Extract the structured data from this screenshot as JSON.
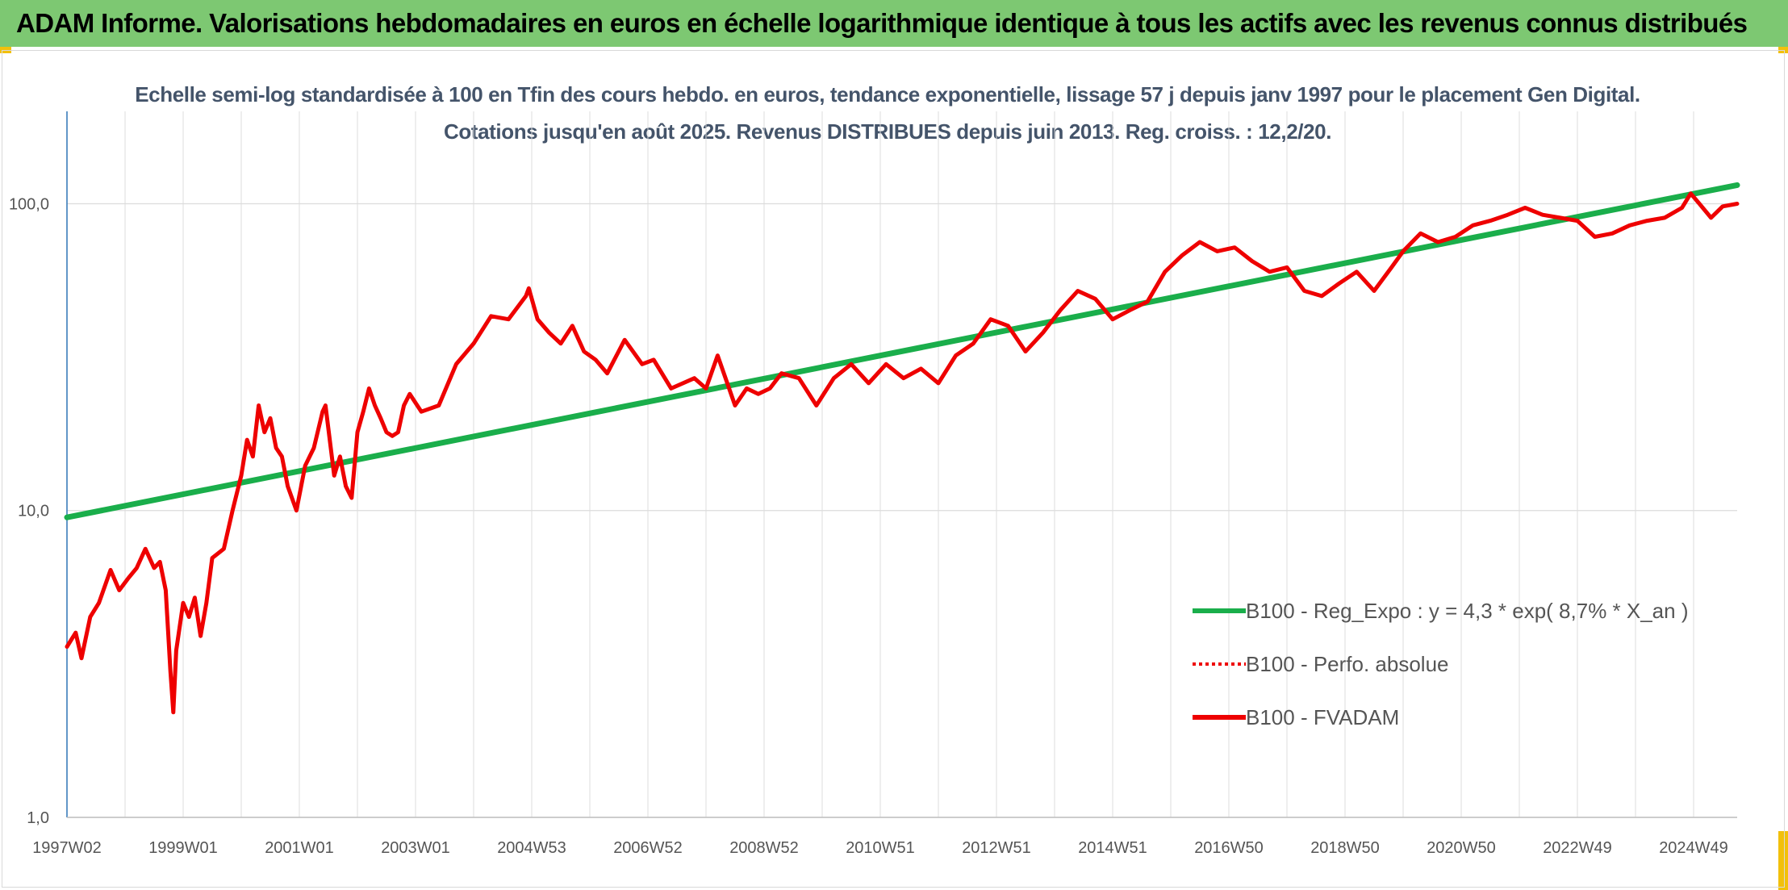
{
  "header": {
    "title": "ADAM Informe. Valorisations hebdomadaires en euros en échelle logarithmique identique à tous les actifs avec les revenus connus distribués"
  },
  "colors": {
    "header_bg": "#7dc872",
    "corner": "#f2c00c",
    "trend": "#1aae4b",
    "fvadam": "#ee0000",
    "grid": "#dcdcdc",
    "axis": "#2f75b5"
  },
  "chart_data": {
    "type": "line",
    "title": "Echelle semi-log standardisée à 100 en Tfin des cours hebdo. en euros, tendance exponentielle, lissage 57 j depuis janv 1997 pour le placement Gen Digital. Cotations jusqu'en août 2025. Revenus DISTRIBUES depuis juin 2013. Reg. croiss. : 12,2/20.",
    "y_scale": "log",
    "ylim": [
      1,
      200
    ],
    "y_ticks": [
      "1,0",
      "10,0",
      "100,0"
    ],
    "y_tick_values": [
      1,
      10,
      100
    ],
    "xlim": [
      1997.0,
      2025.75
    ],
    "x_tick_labels": [
      "1997W02",
      "1999W01",
      "2001W01",
      "2003W01",
      "2004W53",
      "2006W52",
      "2008W52",
      "2010W51",
      "2012W51",
      "2014W51",
      "2016W50",
      "2018W50",
      "2020W50",
      "2022W49",
      "2024W49"
    ],
    "x_tick_values": [
      1997.0,
      1999.0,
      2001.0,
      2003.0,
      2005.0,
      2007.0,
      2009.0,
      2011.0,
      2013.0,
      2015.0,
      2017.0,
      2019.0,
      2021.0,
      2023.0,
      2025.0
    ],
    "legend_position": "bottom-right",
    "grid": true,
    "series": [
      {
        "name": "B100 - Reg_Expo : y = 4,3 * exp( 8,7% *  X_an )",
        "style": "solid-green",
        "x": [
          1997.0,
          2025.75
        ],
        "y": [
          9.5,
          115
        ]
      },
      {
        "name": "B100 - Perfo. absolue",
        "style": "dotted-red",
        "x": [],
        "y": []
      },
      {
        "name": "B100 - FVADAM",
        "style": "solid-red",
        "x": [
          1997.0,
          1997.15,
          1997.25,
          1997.4,
          1997.55,
          1997.75,
          1997.9,
          1998.05,
          1998.2,
          1998.35,
          1998.5,
          1998.6,
          1998.7,
          1998.78,
          1998.83,
          1998.88,
          1999.0,
          1999.1,
          1999.2,
          1999.3,
          1999.4,
          1999.5,
          1999.7,
          1999.85,
          2000.0,
          2000.1,
          2000.2,
          2000.3,
          2000.4,
          2000.5,
          2000.6,
          2000.7,
          2000.8,
          2000.95,
          2001.1,
          2001.25,
          2001.4,
          2001.45,
          2001.6,
          2001.7,
          2001.8,
          2001.9,
          2002.0,
          2002.1,
          2002.2,
          2002.3,
          2002.4,
          2002.5,
          2002.6,
          2002.7,
          2002.8,
          2002.9,
          2003.1,
          2003.4,
          2003.7,
          2004.0,
          2004.3,
          2004.6,
          2004.9,
          2004.95,
          2005.1,
          2005.3,
          2005.5,
          2005.7,
          2005.9,
          2006.1,
          2006.3,
          2006.6,
          2006.9,
          2007.1,
          2007.4,
          2007.8,
          2008.0,
          2008.2,
          2008.5,
          2008.7,
          2008.9,
          2009.1,
          2009.3,
          2009.6,
          2009.9,
          2010.2,
          2010.5,
          2010.8,
          2011.1,
          2011.4,
          2011.7,
          2012.0,
          2012.3,
          2012.6,
          2012.9,
          2013.2,
          2013.5,
          2013.8,
          2014.1,
          2014.4,
          2014.7,
          2015.0,
          2015.3,
          2015.6,
          2015.9,
          2016.2,
          2016.5,
          2016.8,
          2017.1,
          2017.4,
          2017.7,
          2018.0,
          2018.3,
          2018.6,
          2018.9,
          2019.2,
          2019.5,
          2019.8,
          2020.0,
          2020.3,
          2020.6,
          2020.9,
          2021.2,
          2021.5,
          2021.8,
          2022.1,
          2022.4,
          2022.7,
          2023.0,
          2023.3,
          2023.6,
          2023.9,
          2024.2,
          2024.5,
          2024.8,
          2024.95,
          2025.1,
          2025.3,
          2025.5,
          2025.75
        ],
        "y": [
          3.6,
          4.0,
          3.3,
          4.5,
          5.0,
          6.4,
          5.5,
          6.0,
          6.5,
          7.5,
          6.5,
          6.8,
          5.5,
          3.0,
          2.2,
          3.5,
          5.0,
          4.5,
          5.2,
          3.9,
          5.0,
          7.0,
          7.5,
          10.0,
          13.0,
          17.0,
          15.0,
          22.0,
          18.0,
          20.0,
          16.0,
          15.0,
          12.0,
          10.0,
          14.0,
          16.0,
          21.0,
          22.0,
          13.0,
          15.0,
          12.0,
          11.0,
          18.0,
          21.0,
          25.0,
          22.0,
          20.0,
          18.0,
          17.5,
          18.0,
          22.0,
          24.0,
          21.0,
          22.0,
          30.0,
          35.0,
          43.0,
          42.0,
          50.0,
          53.0,
          42.0,
          38.0,
          35.0,
          40.0,
          33.0,
          31.0,
          28.0,
          36.0,
          30.0,
          31.0,
          25.0,
          27.0,
          25.0,
          32.0,
          22.0,
          25.0,
          24.0,
          25.0,
          28.0,
          27.0,
          22.0,
          27.0,
          30.0,
          26.0,
          30.0,
          27.0,
          29.0,
          26.0,
          32.0,
          35.0,
          42.0,
          40.0,
          33.0,
          38.0,
          45.0,
          52.0,
          49.0,
          42.0,
          45.0,
          48.0,
          60.0,
          68.0,
          75.0,
          70.0,
          72.0,
          65.0,
          60.0,
          62.0,
          52.0,
          50.0,
          55.0,
          60.0,
          52.0,
          62.0,
          70.0,
          80.0,
          75.0,
          78.0,
          85.0,
          88.0,
          92.0,
          97.0,
          92.0,
          90.0,
          88.0,
          78.0,
          80.0,
          85.0,
          88.0,
          90.0,
          97.0,
          108.0,
          100.0,
          90.0,
          98.0,
          100.0
        ]
      }
    ]
  }
}
